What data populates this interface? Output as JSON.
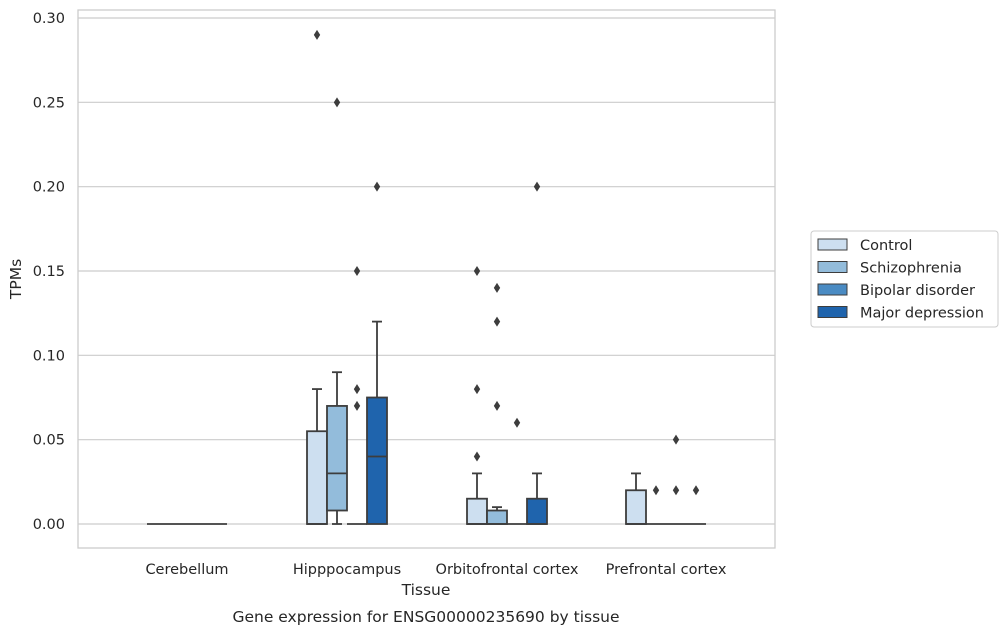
{
  "chart_data": {
    "type": "box",
    "xlabel": "Tissue",
    "ylabel": "TPMs",
    "caption": "Gene expression for ENSG00000235690 by tissue",
    "categories": [
      "Cerebellum",
      "Hipppocampus",
      "Orbitofrontal cortex",
      "Prefrontal cortex"
    ],
    "ylim": [
      -0.014,
      0.302
    ],
    "yticks": [
      0.0,
      0.05,
      0.1,
      0.15,
      0.2,
      0.25,
      0.3
    ],
    "ytick_labels": [
      "0.00",
      "0.05",
      "0.10",
      "0.15",
      "0.20",
      "0.25",
      "0.30"
    ],
    "grid": "horizontal",
    "legend_position": "right",
    "series": [
      {
        "name": "Control",
        "color": "#cddff0",
        "boxes": [
          {
            "category": "Cerebellum",
            "whisker_low": 0,
            "q1": 0,
            "median": 0,
            "q3": 0,
            "whisker_high": 0,
            "outliers": []
          },
          {
            "category": "Hipppocampus",
            "whisker_low": 0,
            "q1": 0,
            "median": 0,
            "q3": 0.055,
            "whisker_high": 0.08,
            "outliers": [
              0.29
            ]
          },
          {
            "category": "Orbitofrontal cortex",
            "whisker_low": 0,
            "q1": 0,
            "median": 0,
            "q3": 0.015,
            "whisker_high": 0.03,
            "outliers": [
              0.04,
              0.08,
              0.15
            ]
          },
          {
            "category": "Prefrontal cortex",
            "whisker_low": 0,
            "q1": 0,
            "median": 0,
            "q3": 0.02,
            "whisker_high": 0.03,
            "outliers": []
          }
        ]
      },
      {
        "name": "Schizophrenia",
        "color": "#93bcdb",
        "boxes": [
          {
            "category": "Cerebellum",
            "whisker_low": 0,
            "q1": 0,
            "median": 0,
            "q3": 0,
            "whisker_high": 0,
            "outliers": []
          },
          {
            "category": "Hipppocampus",
            "whisker_low": 0,
            "q1": 0.008,
            "median": 0.03,
            "q3": 0.07,
            "whisker_high": 0.09,
            "outliers": [
              0.25
            ]
          },
          {
            "category": "Orbitofrontal cortex",
            "whisker_low": 0,
            "q1": 0,
            "median": 0,
            "q3": 0.008,
            "whisker_high": 0.01,
            "outliers": [
              0.07,
              0.12,
              0.14
            ]
          },
          {
            "category": "Prefrontal cortex",
            "whisker_low": 0,
            "q1": 0,
            "median": 0,
            "q3": 0,
            "whisker_high": 0,
            "outliers": [
              0.02
            ]
          }
        ]
      },
      {
        "name": "Bipolar disorder",
        "color": "#4a8bc3",
        "boxes": [
          {
            "category": "Cerebellum",
            "whisker_low": 0,
            "q1": 0,
            "median": 0,
            "q3": 0,
            "whisker_high": 0,
            "outliers": []
          },
          {
            "category": "Hipppocampus",
            "whisker_low": 0,
            "q1": 0,
            "median": 0,
            "q3": 0,
            "whisker_high": 0,
            "outliers": [
              0.07,
              0.08,
              0.15
            ]
          },
          {
            "category": "Orbitofrontal cortex",
            "whisker_low": 0,
            "q1": 0,
            "median": 0,
            "q3": 0,
            "whisker_high": 0,
            "outliers": [
              0.06
            ]
          },
          {
            "category": "Prefrontal cortex",
            "whisker_low": 0,
            "q1": 0,
            "median": 0,
            "q3": 0,
            "whisker_high": 0,
            "outliers": [
              0.02,
              0.05
            ]
          }
        ]
      },
      {
        "name": "Major depression",
        "color": "#1f64ad",
        "boxes": [
          {
            "category": "Cerebellum",
            "whisker_low": 0,
            "q1": 0,
            "median": 0,
            "q3": 0,
            "whisker_high": 0,
            "outliers": []
          },
          {
            "category": "Hipppocampus",
            "whisker_low": 0,
            "q1": 0,
            "median": 0.04,
            "q3": 0.075,
            "whisker_high": 0.12,
            "outliers": [
              0.2
            ]
          },
          {
            "category": "Orbitofrontal cortex",
            "whisker_low": 0,
            "q1": 0,
            "median": 0,
            "q3": 0.015,
            "whisker_high": 0.03,
            "outliers": [
              0.2
            ]
          },
          {
            "category": "Prefrontal cortex",
            "whisker_low": 0,
            "q1": 0,
            "median": 0,
            "q3": 0,
            "whisker_high": 0,
            "outliers": [
              0.02
            ]
          }
        ]
      }
    ]
  }
}
